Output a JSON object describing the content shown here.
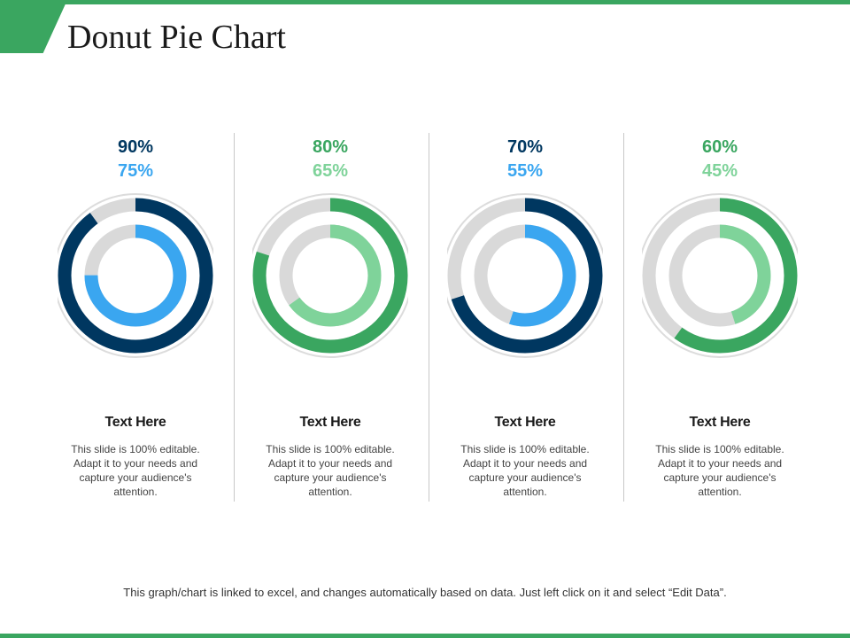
{
  "slide": {
    "title": "Donut Pie Chart",
    "footer_note": "This graph/chart is linked to excel, and changes automatically based on data. Just left click on it and select “Edit Data”.",
    "colors": {
      "accent_green": "#3aa660",
      "dark_blue": "#003760",
      "light_blue": "#3aa6f0",
      "light_green": "#7fd39a",
      "track_gray": "#d9d9d9"
    }
  },
  "chart_data": [
    {
      "type": "pie",
      "series": [
        {
          "role": "outer",
          "value": 90,
          "label": "90%",
          "color": "#003760"
        },
        {
          "role": "inner",
          "value": 75,
          "label": "75%",
          "color": "#3aa6f0"
        }
      ],
      "heading": "Text Here",
      "description": "This slide is 100% editable. Adapt it to your needs and capture your audience's attention."
    },
    {
      "type": "pie",
      "series": [
        {
          "role": "outer",
          "value": 80,
          "label": "80%",
          "color": "#3aa660"
        },
        {
          "role": "inner",
          "value": 65,
          "label": "65%",
          "color": "#7fd39a"
        }
      ],
      "heading": "Text Here",
      "description": "This slide is 100% editable. Adapt it to your needs and capture your audience's attention."
    },
    {
      "type": "pie",
      "series": [
        {
          "role": "outer",
          "value": 70,
          "label": "70%",
          "color": "#003760"
        },
        {
          "role": "inner",
          "value": 55,
          "label": "55%",
          "color": "#3aa6f0"
        }
      ],
      "heading": "Text Here",
      "description": "This slide is 100% editable. Adapt it to your needs and capture your audience's attention."
    },
    {
      "type": "pie",
      "series": [
        {
          "role": "outer",
          "value": 60,
          "label": "60%",
          "color": "#3aa660"
        },
        {
          "role": "inner",
          "value": 45,
          "label": "45%",
          "color": "#7fd39a"
        }
      ],
      "heading": "Text Here",
      "description": "This slide is 100% editable. Adapt it to your needs and capture your audience's attention."
    }
  ]
}
